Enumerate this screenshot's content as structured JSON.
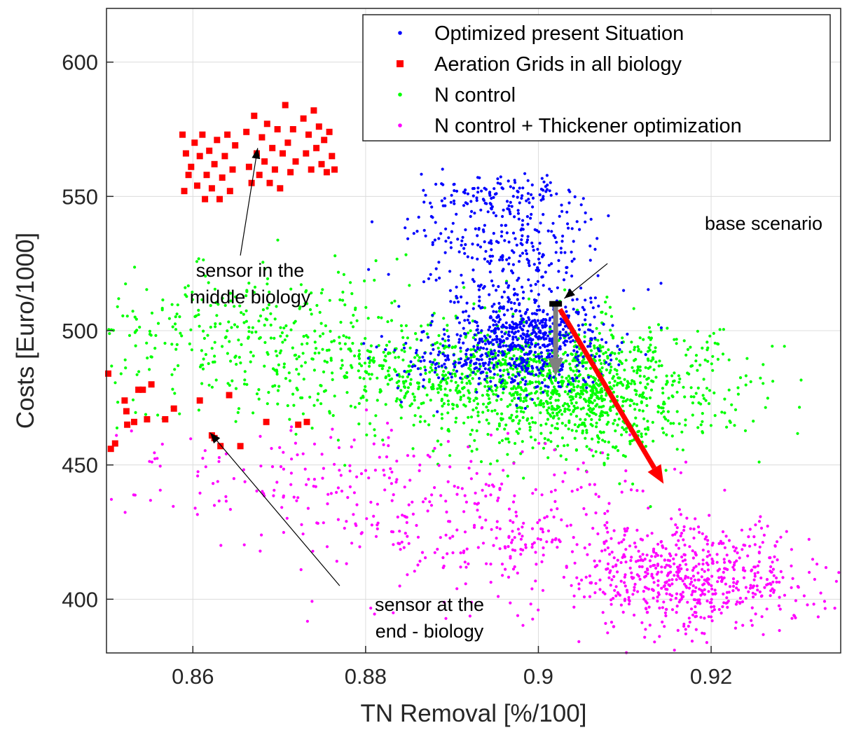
{
  "chart_data": {
    "type": "scatter",
    "xlabel": "TN Removal [%/100]",
    "ylabel": "Costs [Euro/1000]",
    "xlim": [
      0.85,
      0.935
    ],
    "ylim": [
      380,
      620
    ],
    "x_ticks": [
      "0.86",
      "0.88",
      "0.9",
      "0.92"
    ],
    "y_ticks": [
      "400",
      "450",
      "500",
      "550",
      "600"
    ],
    "x_tick_values": [
      0.86,
      0.88,
      0.9,
      0.92
    ],
    "y_tick_values": [
      400,
      450,
      500,
      550,
      600
    ],
    "grid": true,
    "legend_position": "top-right",
    "series": [
      {
        "name": "Optimized present Situation",
        "color": "#0000ff",
        "marker": "dot",
        "clusters": [
          {
            "x": 0.8985,
            "y": 497,
            "sx": 0.0045,
            "sy": 9,
            "n": 650
          },
          {
            "x": 0.897,
            "y": 529,
            "sx": 0.0055,
            "sy": 11,
            "n": 240
          },
          {
            "x": 0.895,
            "y": 550,
            "sx": 0.0045,
            "sy": 5,
            "n": 130
          },
          {
            "x": 0.889,
            "y": 488,
            "sx": 0.004,
            "sy": 6,
            "n": 80
          }
        ]
      },
      {
        "name": "Aeration Grids in all biology",
        "color": "#ff0000",
        "marker": "square",
        "points": [
          [
            0.8588,
            573
          ],
          [
            0.8592,
            566
          ],
          [
            0.8595,
            558
          ],
          [
            0.859,
            552
          ],
          [
            0.8598,
            561
          ],
          [
            0.8602,
            570
          ],
          [
            0.8605,
            554
          ],
          [
            0.8608,
            565
          ],
          [
            0.8611,
            573
          ],
          [
            0.8614,
            549
          ],
          [
            0.8616,
            558
          ],
          [
            0.8619,
            567
          ],
          [
            0.8622,
            553
          ],
          [
            0.8625,
            562
          ],
          [
            0.8628,
            571
          ],
          [
            0.8631,
            549
          ],
          [
            0.8634,
            557
          ],
          [
            0.8637,
            565
          ],
          [
            0.864,
            573
          ],
          [
            0.8643,
            552
          ],
          [
            0.8646,
            560
          ],
          [
            0.8649,
            569
          ],
          [
            0.8662,
            574
          ],
          [
            0.8665,
            561
          ],
          [
            0.8668,
            555
          ],
          [
            0.8671,
            580
          ],
          [
            0.8674,
            566
          ],
          [
            0.8677,
            558
          ],
          [
            0.868,
            572
          ],
          [
            0.8683,
            563
          ],
          [
            0.8686,
            577
          ],
          [
            0.8689,
            555
          ],
          [
            0.8692,
            568
          ],
          [
            0.8695,
            560
          ],
          [
            0.8698,
            575
          ],
          [
            0.8701,
            553
          ],
          [
            0.8704,
            566
          ],
          [
            0.8707,
            584
          ],
          [
            0.871,
            570
          ],
          [
            0.8713,
            559
          ],
          [
            0.8716,
            575
          ],
          [
            0.8719,
            563
          ],
          [
            0.8728,
            579
          ],
          [
            0.8731,
            566
          ],
          [
            0.8734,
            573
          ],
          [
            0.8737,
            560
          ],
          [
            0.874,
            582
          ],
          [
            0.8743,
            568
          ],
          [
            0.8746,
            576
          ],
          [
            0.8749,
            562
          ],
          [
            0.8752,
            571
          ],
          [
            0.8755,
            559
          ],
          [
            0.8758,
            574
          ],
          [
            0.8761,
            565
          ],
          [
            0.8764,
            560
          ],
          [
            0.8502,
            484
          ],
          [
            0.8505,
            456
          ],
          [
            0.851,
            458
          ],
          [
            0.8521,
            474
          ],
          [
            0.8523,
            470
          ],
          [
            0.8524,
            465
          ],
          [
            0.8532,
            466
          ],
          [
            0.8537,
            478
          ],
          [
            0.8542,
            478
          ],
          [
            0.8547,
            467
          ],
          [
            0.8552,
            480
          ],
          [
            0.8568,
            467
          ],
          [
            0.8578,
            471
          ],
          [
            0.8608,
            474
          ],
          [
            0.8622,
            461
          ],
          [
            0.8625,
            460
          ],
          [
            0.8632,
            457
          ],
          [
            0.8642,
            476
          ],
          [
            0.8655,
            457
          ],
          [
            0.8685,
            466
          ],
          [
            0.8722,
            465
          ],
          [
            0.8732,
            466
          ]
        ]
      },
      {
        "name": "N control",
        "color": "#00ff00",
        "marker": "dot",
        "clusters": [
          {
            "x": 0.905,
            "y": 478,
            "sx": 0.0085,
            "sy": 12,
            "n": 1050
          },
          {
            "x": 0.89,
            "y": 484,
            "sx": 0.009,
            "sy": 10,
            "n": 450
          },
          {
            "x": 0.867,
            "y": 498,
            "sx": 0.011,
            "sy": 14,
            "n": 380
          }
        ]
      },
      {
        "name": "N control + Thickener optimization",
        "color": "#ff00ff",
        "marker": "dot",
        "clusters": [
          {
            "x": 0.918,
            "y": 408,
            "sx": 0.007,
            "sy": 10,
            "n": 600
          },
          {
            "x": 0.895,
            "y": 428,
            "sx": 0.01,
            "sy": 14,
            "n": 330
          },
          {
            "x": 0.876,
            "y": 445,
            "sx": 0.007,
            "sy": 10,
            "n": 90
          },
          {
            "x": 0.86,
            "y": 448,
            "sx": 0.007,
            "sy": 9,
            "n": 40
          }
        ]
      }
    ],
    "annotations": [
      {
        "text_lines": [
          "sensor in the",
          "middle biology"
        ],
        "arrow_from": [
          0.8655,
          528
        ],
        "arrow_to": [
          0.8675,
          568
        ]
      },
      {
        "text_lines": [
          "sensor at the",
          "end - biology"
        ],
        "arrow_from": [
          0.877,
          405
        ],
        "arrow_to": [
          0.862,
          462
        ]
      },
      {
        "text_lines": [
          "base scenario"
        ],
        "arrow_from": [
          0.908,
          525
        ],
        "arrow_to": [
          0.903,
          512
        ]
      }
    ],
    "arrows": [
      {
        "from": [
          0.902,
          510
        ],
        "to": [
          0.902,
          483
        ],
        "color": "#808080"
      },
      {
        "from": [
          0.9025,
          508
        ],
        "to": [
          0.9145,
          443
        ],
        "color": "#ff0000"
      }
    ]
  }
}
